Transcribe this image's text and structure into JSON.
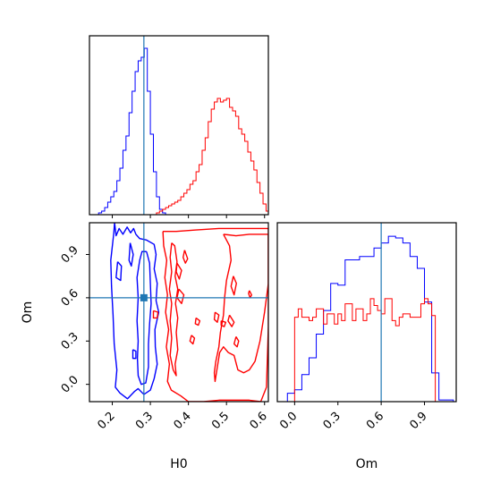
{
  "chart_data": [
    {
      "type": "histogram",
      "variable": "H0",
      "xlim": [
        0.14,
        0.61
      ],
      "xticks": [
        0.2,
        0.3,
        0.4,
        0.5,
        0.6
      ],
      "truth_line": 0.283,
      "series": [
        {
          "color": "#0000ff",
          "bins": [
            0.164,
            0.172,
            0.18,
            0.188,
            0.196,
            0.204,
            0.212,
            0.22,
            0.228,
            0.236,
            0.244,
            0.252,
            0.26,
            0.268,
            0.276,
            0.284,
            0.292,
            0.3,
            0.308,
            0.316,
            0.324,
            0.332
          ],
          "counts": [
            0.01,
            0.02,
            0.04,
            0.07,
            0.1,
            0.13,
            0.19,
            0.26,
            0.36,
            0.44,
            0.57,
            0.69,
            0.8,
            0.86,
            0.88,
            0.93,
            0.69,
            0.45,
            0.24,
            0.1,
            0.03,
            0.01
          ]
        },
        {
          "color": "#ff0000",
          "bins": [
            0.316,
            0.324,
            0.332,
            0.34,
            0.348,
            0.356,
            0.364,
            0.372,
            0.38,
            0.388,
            0.396,
            0.404,
            0.412,
            0.42,
            0.428,
            0.436,
            0.444,
            0.452,
            0.46,
            0.468,
            0.476,
            0.484,
            0.492,
            0.5,
            0.508,
            0.516,
            0.524,
            0.532,
            0.54,
            0.548,
            0.556,
            0.564,
            0.572,
            0.58,
            0.588,
            0.596,
            0.604
          ],
          "counts": [
            0.01,
            0.02,
            0.03,
            0.04,
            0.05,
            0.06,
            0.07,
            0.08,
            0.1,
            0.12,
            0.14,
            0.17,
            0.19,
            0.24,
            0.28,
            0.36,
            0.43,
            0.52,
            0.59,
            0.63,
            0.65,
            0.63,
            0.64,
            0.65,
            0.6,
            0.58,
            0.55,
            0.48,
            0.45,
            0.41,
            0.35,
            0.3,
            0.25,
            0.18,
            0.12,
            0.06,
            0.02
          ]
        }
      ]
    },
    {
      "type": "contour",
      "xlabel": "H0",
      "ylabel": "Om",
      "xlim": [
        0.14,
        0.61
      ],
      "ylim": [
        -0.12,
        1.12
      ],
      "xticks": [
        0.2,
        0.3,
        0.4,
        0.5,
        0.6
      ],
      "yticks": [
        0.0,
        0.3,
        0.6,
        0.9
      ],
      "ytick_labels": [
        "0.0",
        "0.3",
        "0.6",
        "0.9"
      ],
      "truth_point": [
        0.283,
        0.6
      ],
      "blue_contours": [
        [
          [
            0.206,
            1.12
          ],
          [
            0.21,
            1.03
          ],
          [
            0.218,
            1.08
          ],
          [
            0.228,
            1.04
          ],
          [
            0.239,
            1.09
          ],
          [
            0.248,
            1.05
          ],
          [
            0.256,
            1.08
          ],
          [
            0.262,
            1.04
          ],
          [
            0.272,
            1.01
          ],
          [
            0.29,
            1.0
          ],
          [
            0.31,
            0.97
          ],
          [
            0.315,
            0.9
          ],
          [
            0.31,
            0.8
          ],
          [
            0.318,
            0.7
          ],
          [
            0.315,
            0.58
          ],
          [
            0.322,
            0.5
          ],
          [
            0.312,
            0.38
          ],
          [
            0.313,
            0.26
          ],
          [
            0.318,
            0.14
          ],
          [
            0.31,
            0.04
          ],
          [
            0.3,
            -0.04
          ],
          [
            0.283,
            -0.07
          ],
          [
            0.268,
            -0.03
          ],
          [
            0.258,
            -0.05
          ],
          [
            0.24,
            -0.1
          ],
          [
            0.22,
            -0.06
          ],
          [
            0.208,
            -0.02
          ],
          [
            0.212,
            0.1
          ],
          [
            0.205,
            0.28
          ],
          [
            0.202,
            0.48
          ],
          [
            0.198,
            0.68
          ],
          [
            0.196,
            0.86
          ],
          [
            0.204,
            1.05
          ],
          [
            0.206,
            1.12
          ]
        ],
        [
          [
            0.29,
            0.92
          ],
          [
            0.298,
            0.84
          ],
          [
            0.3,
            0.7
          ],
          [
            0.302,
            0.56
          ],
          [
            0.298,
            0.42
          ],
          [
            0.295,
            0.28
          ],
          [
            0.295,
            0.12
          ],
          [
            0.288,
            0.01
          ],
          [
            0.276,
            0.0
          ],
          [
            0.268,
            0.06
          ],
          [
            0.266,
            0.18
          ],
          [
            0.268,
            0.3
          ],
          [
            0.265,
            0.44
          ],
          [
            0.268,
            0.6
          ],
          [
            0.265,
            0.74
          ],
          [
            0.272,
            0.86
          ],
          [
            0.278,
            0.92
          ],
          [
            0.29,
            0.92
          ]
        ],
        [
          [
            0.214,
            0.85
          ],
          [
            0.224,
            0.82
          ],
          [
            0.222,
            0.72
          ],
          [
            0.21,
            0.74
          ],
          [
            0.214,
            0.85
          ]
        ],
        [
          [
            0.247,
            0.98
          ],
          [
            0.255,
            0.9
          ],
          [
            0.25,
            0.82
          ],
          [
            0.244,
            0.86
          ],
          [
            0.247,
            0.98
          ]
        ],
        [
          [
            0.254,
            0.24
          ],
          [
            0.262,
            0.23
          ],
          [
            0.262,
            0.18
          ],
          [
            0.254,
            0.18
          ],
          [
            0.254,
            0.24
          ]
        ]
      ],
      "red_contours": [
        [
          [
            0.333,
            1.06
          ],
          [
            0.368,
            1.06
          ],
          [
            0.42,
            1.07
          ],
          [
            0.48,
            1.08
          ],
          [
            0.54,
            1.08
          ],
          [
            0.61,
            1.08
          ],
          [
            0.61,
            1.08
          ]
        ],
        [
          [
            0.61,
            1.08
          ],
          [
            0.61,
            0.9
          ],
          [
            0.61,
            0.4
          ],
          [
            0.605,
            -0.02
          ],
          [
            0.59,
            -0.12
          ],
          [
            0.56,
            -0.11
          ],
          [
            0.52,
            -0.11
          ],
          [
            0.48,
            -0.11
          ],
          [
            0.44,
            -0.12
          ],
          [
            0.4,
            -0.12
          ],
          [
            0.38,
            -0.08
          ],
          [
            0.355,
            -0.04
          ],
          [
            0.345,
            0.02
          ],
          [
            0.35,
            0.14
          ],
          [
            0.342,
            0.26
          ],
          [
            0.348,
            0.38
          ],
          [
            0.34,
            0.5
          ],
          [
            0.345,
            0.62
          ],
          [
            0.338,
            0.74
          ],
          [
            0.343,
            0.86
          ],
          [
            0.335,
            0.96
          ],
          [
            0.333,
            1.06
          ]
        ],
        [
          [
            0.356,
            0.98
          ],
          [
            0.364,
            0.96
          ],
          [
            0.37,
            0.85
          ],
          [
            0.365,
            0.75
          ],
          [
            0.372,
            0.66
          ],
          [
            0.366,
            0.56
          ],
          [
            0.372,
            0.46
          ],
          [
            0.368,
            0.36
          ],
          [
            0.372,
            0.24
          ],
          [
            0.365,
            0.14
          ],
          [
            0.368,
            0.06
          ],
          [
            0.36,
            0.1
          ],
          [
            0.352,
            0.2
          ],
          [
            0.356,
            0.32
          ],
          [
            0.352,
            0.44
          ],
          [
            0.356,
            0.56
          ],
          [
            0.35,
            0.66
          ],
          [
            0.356,
            0.78
          ],
          [
            0.352,
            0.88
          ],
          [
            0.356,
            0.98
          ]
        ],
        [
          [
            0.492,
            1.04
          ],
          [
            0.525,
            1.03
          ],
          [
            0.56,
            1.04
          ],
          [
            0.61,
            1.04
          ],
          [
            0.61,
            0.7
          ],
          [
            0.6,
            0.5
          ],
          [
            0.588,
            0.3
          ],
          [
            0.575,
            0.16
          ],
          [
            0.56,
            0.1
          ],
          [
            0.545,
            0.08
          ],
          [
            0.53,
            0.1
          ],
          [
            0.52,
            0.2
          ],
          [
            0.505,
            0.22
          ],
          [
            0.492,
            0.26
          ],
          [
            0.482,
            0.22
          ],
          [
            0.47,
            0.02
          ],
          [
            0.468,
            0.08
          ],
          [
            0.472,
            0.16
          ],
          [
            0.48,
            0.26
          ],
          [
            0.484,
            0.36
          ],
          [
            0.492,
            0.48
          ],
          [
            0.495,
            0.6
          ],
          [
            0.5,
            0.72
          ],
          [
            0.512,
            0.86
          ],
          [
            0.508,
            0.96
          ],
          [
            0.492,
            1.04
          ]
        ],
        [
          [
            0.39,
            0.93
          ],
          [
            0.398,
            0.87
          ],
          [
            0.392,
            0.84
          ],
          [
            0.386,
            0.88
          ],
          [
            0.39,
            0.93
          ]
        ],
        [
          [
            0.37,
            0.84
          ],
          [
            0.382,
            0.79
          ],
          [
            0.376,
            0.73
          ],
          [
            0.368,
            0.78
          ],
          [
            0.37,
            0.84
          ]
        ],
        [
          [
            0.375,
            0.66
          ],
          [
            0.388,
            0.62
          ],
          [
            0.382,
            0.56
          ],
          [
            0.37,
            0.6
          ],
          [
            0.375,
            0.66
          ]
        ],
        [
          [
            0.308,
            0.51
          ],
          [
            0.32,
            0.5
          ],
          [
            0.318,
            0.46
          ],
          [
            0.308,
            0.46
          ],
          [
            0.308,
            0.51
          ]
        ],
        [
          [
            0.518,
            0.75
          ],
          [
            0.526,
            0.7
          ],
          [
            0.52,
            0.62
          ],
          [
            0.512,
            0.68
          ],
          [
            0.518,
            0.75
          ]
        ],
        [
          [
            0.508,
            0.48
          ],
          [
            0.52,
            0.43
          ],
          [
            0.514,
            0.4
          ],
          [
            0.504,
            0.44
          ],
          [
            0.508,
            0.48
          ]
        ],
        [
          [
            0.486,
            0.44
          ],
          [
            0.498,
            0.43
          ],
          [
            0.494,
            0.4
          ],
          [
            0.486,
            0.41
          ],
          [
            0.486,
            0.44
          ]
        ],
        [
          [
            0.47,
            0.5
          ],
          [
            0.48,
            0.48
          ],
          [
            0.476,
            0.43
          ],
          [
            0.468,
            0.45
          ],
          [
            0.47,
            0.5
          ]
        ],
        [
          [
            0.525,
            0.33
          ],
          [
            0.532,
            0.3
          ],
          [
            0.528,
            0.26
          ],
          [
            0.52,
            0.28
          ],
          [
            0.525,
            0.33
          ]
        ],
        [
          [
            0.42,
            0.46
          ],
          [
            0.43,
            0.44
          ],
          [
            0.426,
            0.41
          ],
          [
            0.418,
            0.42
          ],
          [
            0.42,
            0.46
          ]
        ],
        [
          [
            0.408,
            0.34
          ],
          [
            0.416,
            0.32
          ],
          [
            0.412,
            0.28
          ],
          [
            0.404,
            0.3
          ],
          [
            0.408,
            0.34
          ]
        ],
        [
          [
            0.56,
            0.65
          ],
          [
            0.566,
            0.62
          ],
          [
            0.562,
            0.6
          ],
          [
            0.558,
            0.63
          ],
          [
            0.56,
            0.65
          ]
        ]
      ]
    },
    {
      "type": "histogram",
      "variable": "Om",
      "xlabel": "Om",
      "xlim": [
        -0.12,
        1.12
      ],
      "xticks": [
        0.0,
        0.3,
        0.6,
        0.9
      ],
      "xtick_labels": [
        "0.0",
        "0.3",
        "0.6",
        "0.9"
      ],
      "truth_line": 0.6,
      "series": [
        {
          "color": "#0000ff",
          "bins": [
            -0.05,
            0.0,
            0.05,
            0.1,
            0.15,
            0.2,
            0.25,
            0.3,
            0.35,
            0.4,
            0.45,
            0.5,
            0.55,
            0.6,
            0.65,
            0.7,
            0.75,
            0.8,
            0.85,
            0.9,
            0.95,
            1.0,
            1.05
          ],
          "counts": [
            0.05,
            0.07,
            0.16,
            0.26,
            0.4,
            0.54,
            0.7,
            0.69,
            0.84,
            0.84,
            0.86,
            0.86,
            0.91,
            0.94,
            0.98,
            0.97,
            0.94,
            0.86,
            0.79,
            0.59,
            0.17,
            0.01,
            0.01
          ]
        },
        {
          "color": "#ff0000",
          "bins": [
            0.0,
            0.025,
            0.05,
            0.075,
            0.1,
            0.125,
            0.15,
            0.175,
            0.2,
            0.225,
            0.25,
            0.275,
            0.3,
            0.325,
            0.35,
            0.375,
            0.4,
            0.425,
            0.45,
            0.475,
            0.5,
            0.525,
            0.55,
            0.575,
            0.6,
            0.625,
            0.65,
            0.675,
            0.7,
            0.725,
            0.75,
            0.775,
            0.8,
            0.825,
            0.85,
            0.875,
            0.9,
            0.925,
            0.95,
            0.975
          ],
          "counts": [
            0.5,
            0.55,
            0.5,
            0.5,
            0.48,
            0.5,
            0.55,
            0.55,
            0.46,
            0.52,
            0.52,
            0.46,
            0.52,
            0.48,
            0.58,
            0.58,
            0.48,
            0.55,
            0.55,
            0.48,
            0.52,
            0.61,
            0.57,
            0.54,
            0.52,
            0.61,
            0.61,
            0.48,
            0.45,
            0.5,
            0.52,
            0.52,
            0.5,
            0.5,
            0.5,
            0.58,
            0.61,
            0.58,
            0.51,
            0.0
          ]
        }
      ]
    }
  ]
}
